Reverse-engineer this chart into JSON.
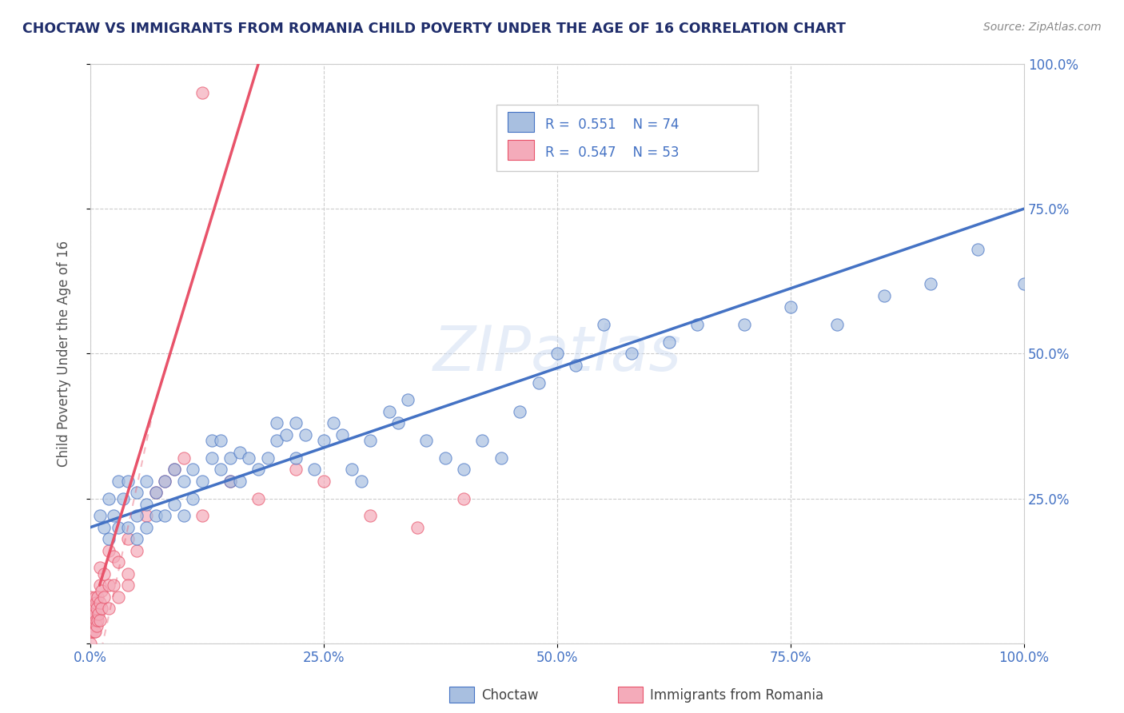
{
  "title": "CHOCTAW VS IMMIGRANTS FROM ROMANIA CHILD POVERTY UNDER THE AGE OF 16 CORRELATION CHART",
  "source": "Source: ZipAtlas.com",
  "ylabel": "Child Poverty Under the Age of 16",
  "xlim": [
    0,
    1.0
  ],
  "ylim": [
    0,
    1.0
  ],
  "xticks": [
    0.0,
    0.25,
    0.5,
    0.75,
    1.0
  ],
  "yticks": [
    0.0,
    0.25,
    0.5,
    0.75,
    1.0
  ],
  "xticklabels": [
    "0.0%",
    "25.0%",
    "50.0%",
    "75.0%",
    "100.0%"
  ],
  "yticklabels": [
    "",
    "25.0%",
    "50.0%",
    "75.0%",
    "100.0%"
  ],
  "legend1_label": "Choctaw",
  "legend2_label": "Immigrants from Romania",
  "R1": "0.551",
  "N1": "74",
  "R2": "0.547",
  "N2": "53",
  "trend1_color": "#4472C4",
  "trend2_color": "#E8536A",
  "scatter1_color": "#A8BFE0",
  "scatter2_color": "#F4ABBA",
  "watermark": "ZIPatlas",
  "background_color": "#FFFFFF",
  "choctaw_x": [
    0.01,
    0.015,
    0.02,
    0.02,
    0.025,
    0.03,
    0.03,
    0.035,
    0.04,
    0.04,
    0.05,
    0.05,
    0.05,
    0.06,
    0.06,
    0.06,
    0.07,
    0.07,
    0.08,
    0.08,
    0.09,
    0.09,
    0.1,
    0.1,
    0.11,
    0.11,
    0.12,
    0.13,
    0.13,
    0.14,
    0.14,
    0.15,
    0.15,
    0.16,
    0.16,
    0.17,
    0.18,
    0.19,
    0.2,
    0.2,
    0.21,
    0.22,
    0.22,
    0.23,
    0.24,
    0.25,
    0.26,
    0.27,
    0.28,
    0.29,
    0.3,
    0.32,
    0.33,
    0.34,
    0.36,
    0.38,
    0.4,
    0.42,
    0.44,
    0.46,
    0.48,
    0.5,
    0.52,
    0.55,
    0.58,
    0.62,
    0.65,
    0.7,
    0.75,
    0.8,
    0.85,
    0.9,
    0.95,
    1.0
  ],
  "choctaw_y": [
    0.22,
    0.2,
    0.18,
    0.25,
    0.22,
    0.2,
    0.28,
    0.25,
    0.2,
    0.28,
    0.18,
    0.22,
    0.26,
    0.2,
    0.24,
    0.28,
    0.22,
    0.26,
    0.22,
    0.28,
    0.24,
    0.3,
    0.22,
    0.28,
    0.25,
    0.3,
    0.28,
    0.32,
    0.35,
    0.3,
    0.35,
    0.28,
    0.32,
    0.28,
    0.33,
    0.32,
    0.3,
    0.32,
    0.35,
    0.38,
    0.36,
    0.32,
    0.38,
    0.36,
    0.3,
    0.35,
    0.38,
    0.36,
    0.3,
    0.28,
    0.35,
    0.4,
    0.38,
    0.42,
    0.35,
    0.32,
    0.3,
    0.35,
    0.32,
    0.4,
    0.45,
    0.5,
    0.48,
    0.55,
    0.5,
    0.52,
    0.55,
    0.55,
    0.58,
    0.55,
    0.6,
    0.62,
    0.68,
    0.62
  ],
  "romania_x": [
    0.0,
    0.0,
    0.0,
    0.0,
    0.0,
    0.002,
    0.002,
    0.003,
    0.004,
    0.004,
    0.005,
    0.005,
    0.005,
    0.006,
    0.006,
    0.007,
    0.007,
    0.008,
    0.008,
    0.009,
    0.01,
    0.01,
    0.01,
    0.01,
    0.012,
    0.012,
    0.015,
    0.015,
    0.02,
    0.02,
    0.02,
    0.025,
    0.025,
    0.03,
    0.03,
    0.04,
    0.04,
    0.05,
    0.06,
    0.07,
    0.08,
    0.09,
    0.1,
    0.12,
    0.15,
    0.18,
    0.22,
    0.25,
    0.3,
    0.35,
    0.4,
    0.12,
    0.04
  ],
  "romania_y": [
    0.0,
    0.02,
    0.04,
    0.06,
    0.08,
    0.02,
    0.05,
    0.03,
    0.02,
    0.06,
    0.02,
    0.05,
    0.08,
    0.04,
    0.07,
    0.03,
    0.06,
    0.04,
    0.08,
    0.05,
    0.04,
    0.07,
    0.1,
    0.13,
    0.06,
    0.09,
    0.08,
    0.12,
    0.06,
    0.1,
    0.16,
    0.1,
    0.15,
    0.08,
    0.14,
    0.12,
    0.18,
    0.16,
    0.22,
    0.26,
    0.28,
    0.3,
    0.32,
    0.22,
    0.28,
    0.25,
    0.3,
    0.28,
    0.22,
    0.2,
    0.25,
    0.95,
    0.1
  ],
  "trend2_x_start": 0.0,
  "trend2_y_start": 0.08,
  "trend2_x_end": 0.22,
  "trend2_y_end": 1.0,
  "trend1_x_start": 0.0,
  "trend1_y_start": 0.2,
  "trend1_x_end": 1.0,
  "trend1_y_end": 0.75
}
